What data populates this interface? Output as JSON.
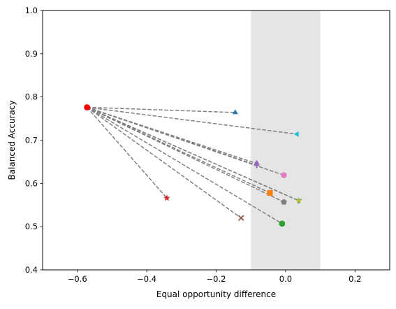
{
  "chart_data": {
    "type": "scatter",
    "title": "",
    "xlabel": "Equal opportunity difference",
    "ylabel": "Balanced Accuracy",
    "xlim": [
      -0.7,
      0.3
    ],
    "ylim": [
      0.4,
      1.0
    ],
    "x_ticks": [
      -0.6,
      -0.4,
      -0.2,
      0.0,
      0.2
    ],
    "x_tick_labels": [
      "−0.6",
      "−0.4",
      "−0.2",
      "0.0",
      "0.2"
    ],
    "y_ticks": [
      0.4,
      0.5,
      0.6,
      0.7,
      0.8,
      0.9,
      1.0
    ],
    "y_tick_labels": [
      "0.4",
      "0.5",
      "0.6",
      "0.7",
      "0.8",
      "0.9",
      "1.0"
    ],
    "grid": false,
    "legend": "none",
    "shaded_band": {
      "x0": -0.1,
      "x1": 0.1,
      "color": "#e5e5e5"
    },
    "baseline": {
      "x": -0.572,
      "y": 0.776,
      "marker": "circle",
      "color": "#ff0000"
    },
    "connector_style": {
      "color": "#808080",
      "dash": "dashed"
    },
    "points": [
      {
        "x": -0.145,
        "y": 0.764,
        "marker": "triangle-up",
        "color": "#1f77b4"
      },
      {
        "x": 0.033,
        "y": 0.714,
        "marker": "triangle-left",
        "color": "#17becf"
      },
      {
        "x": -0.083,
        "y": 0.646,
        "marker": "diamond",
        "color": "#9467bd"
      },
      {
        "x": -0.083,
        "y": 0.642,
        "marker": "plus",
        "color": "#9467bd"
      },
      {
        "x": -0.005,
        "y": 0.619,
        "marker": "hexagon",
        "color": "#e377c2"
      },
      {
        "x": -0.045,
        "y": 0.578,
        "marker": "square",
        "color": "#ff7f0e"
      },
      {
        "x": -0.005,
        "y": 0.557,
        "marker": "pentagon",
        "color": "#7f7f7f"
      },
      {
        "x": 0.038,
        "y": 0.56,
        "marker": "triangle-down",
        "color": "#1f77b4"
      },
      {
        "x": 0.038,
        "y": 0.56,
        "marker": "star",
        "color": "#bcbd22"
      },
      {
        "x": -0.342,
        "y": 0.566,
        "marker": "star",
        "color": "#d62728"
      },
      {
        "x": -0.128,
        "y": 0.52,
        "marker": "x",
        "color": "#8c564b"
      },
      {
        "x": -0.01,
        "y": 0.507,
        "marker": "circle",
        "color": "#2ca02c"
      }
    ]
  }
}
